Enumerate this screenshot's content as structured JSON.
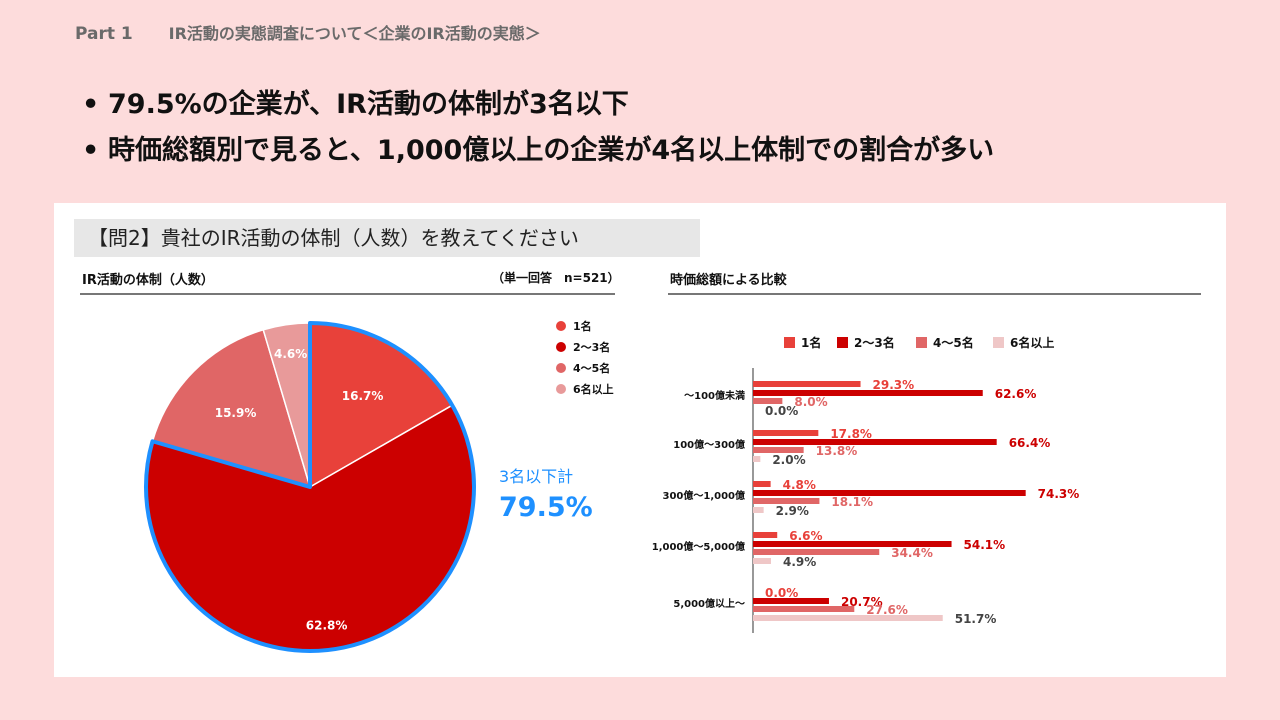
{
  "header": {
    "part": "Part 1",
    "title": "IR活動の実態調査について＜企業のIR活動の実態＞"
  },
  "bullets": [
    "79.5%の企業が、IR活動の体制が3名以下",
    "時価総額別で見ると、1,000億以上の企業が4名以上体制での割合が多い"
  ],
  "question": "【問2】貴社のIR活動の体制（人数）を教えてください",
  "colors": {
    "s1": "#e8413a",
    "s2": "#cc0000",
    "s3": "#e06666",
    "s4": "#efc7c7",
    "s4pie": "#e89a9a",
    "highlight": "#1e90ff"
  },
  "chart_data": [
    {
      "type": "pie",
      "title": "IR活動の体制（人数）",
      "note": "（単一回答　n=521）",
      "legend_position": "right",
      "categories": [
        "1名",
        "2〜3名",
        "4〜5名",
        "6名以上"
      ],
      "values": [
        16.7,
        62.8,
        15.9,
        4.6
      ],
      "value_labels": [
        "16.7%",
        "62.8%",
        "15.9%",
        "4.6%"
      ],
      "callout": {
        "label": "3名以下計",
        "value": "79.5%"
      }
    },
    {
      "type": "bar",
      "orientation": "horizontal",
      "title": "時価総額による比較",
      "legend_position": "top",
      "categories": [
        "〜100億未満",
        "100億〜300億",
        "300億〜1,000億",
        "1,000億〜5,000億",
        "5,000億以上〜"
      ],
      "series": [
        {
          "name": "1名",
          "values": [
            29.3,
            17.8,
            4.8,
            6.6,
            0.0
          ],
          "labels": [
            "29.3%",
            "17.8%",
            "4.8%",
            "6.6%",
            "0.0%"
          ]
        },
        {
          "name": "2〜3名",
          "values": [
            62.6,
            66.4,
            74.3,
            54.1,
            20.7
          ],
          "labels": [
            "62.6%",
            "66.4%",
            "74.3%",
            "54.1%",
            "20.7%"
          ]
        },
        {
          "name": "4〜5名",
          "values": [
            8.0,
            13.8,
            18.1,
            34.4,
            27.6
          ],
          "labels": [
            "8.0%",
            "13.8%",
            "18.1%",
            "34.4%",
            "27.6%"
          ]
        },
        {
          "name": "6名以上",
          "values": [
            0.0,
            2.0,
            2.9,
            4.9,
            51.7
          ],
          "labels": [
            "0.0%",
            "2.0%",
            "2.9%",
            "4.9%",
            "51.7%"
          ]
        }
      ]
    }
  ]
}
